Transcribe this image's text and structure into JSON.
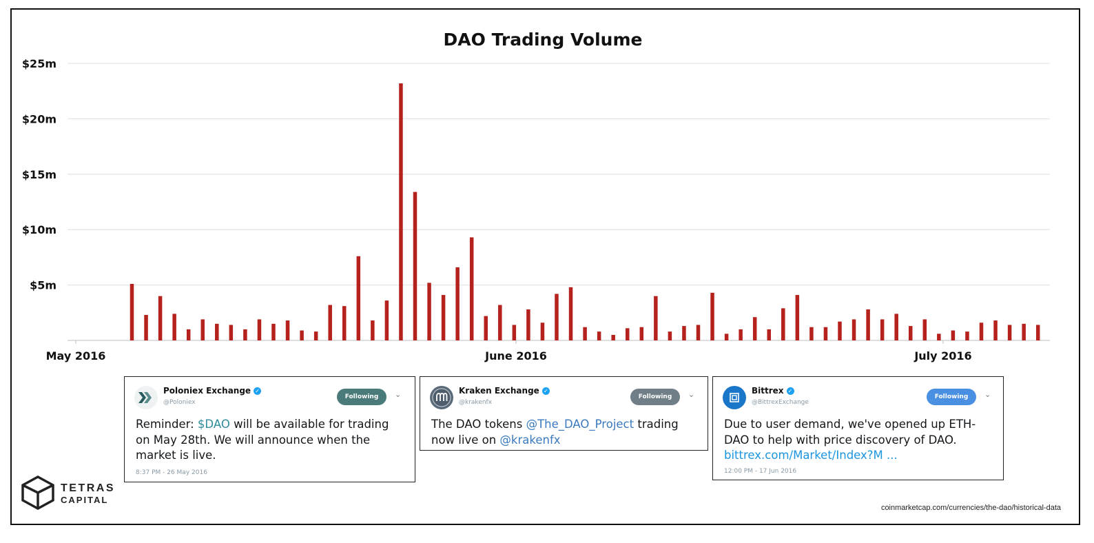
{
  "chart_data": {
    "type": "bar",
    "title": "DAO Trading Volume",
    "xlabel": "",
    "ylabel": "",
    "x_tick_labels": [
      "May 2016",
      "June 2016",
      "July 2016"
    ],
    "y_tick_labels": [
      "$5m",
      "$10m",
      "$15m",
      "$20m",
      "$25m"
    ],
    "y_ticks": [
      5,
      10,
      15,
      20,
      25
    ],
    "ylim": [
      0,
      25
    ],
    "y_unit": "million USD",
    "grid": true,
    "bar_color": "#b5221d",
    "values": [
      5.1,
      2.3,
      4.0,
      2.4,
      1.0,
      1.9,
      1.5,
      1.4,
      1.0,
      1.9,
      1.5,
      1.8,
      0.9,
      0.8,
      3.2,
      3.1,
      7.6,
      1.8,
      3.6,
      23.2,
      13.4,
      5.2,
      4.1,
      6.6,
      9.3,
      2.2,
      3.2,
      1.4,
      2.8,
      1.6,
      4.2,
      4.8,
      1.2,
      0.8,
      0.5,
      1.1,
      1.2,
      4.0,
      0.8,
      1.3,
      1.4,
      4.3,
      0.6,
      1.0,
      2.1,
      1.0,
      2.9,
      4.1,
      1.2,
      1.2,
      1.7,
      1.9,
      2.8,
      1.9,
      2.4,
      1.3,
      1.9,
      0.6,
      0.9,
      0.8,
      1.6,
      1.8,
      1.4,
      1.5,
      1.4
    ]
  },
  "tweets": [
    {
      "name": "Poloniex Exchange",
      "handle": "@Poloniex",
      "follow_label": "Following",
      "follow_color": "#4b7a7a",
      "avatar": "poloniex-logo",
      "text_l1_pre": "Reminder: ",
      "text_l1_link": "$DAO",
      "text_l1_post": " will be available for trading",
      "text_l2": "on May 28th. We will announce when the",
      "text_l3": "market is live.",
      "time": "8:37 PM - 26 May 2016"
    },
    {
      "name": "Kraken Exchange",
      "handle": "@krakenfx",
      "follow_label": "Following",
      "follow_color": "#6f7e87",
      "avatar": "kraken-logo",
      "text_l1_pre": "The DAO tokens ",
      "text_l1_link": "@The_DAO_Project",
      "text_l1_post": " trading",
      "text_l2_pre": "now live on ",
      "text_l2_link": "@krakenfx"
    },
    {
      "name": "Bittrex",
      "handle": "@BittrexExchange",
      "follow_label": "Following",
      "follow_color": "#4a90e2",
      "avatar": "bittrex-logo",
      "text_l1": "Due to user demand, we've opened up ETH-",
      "text_l2": "DAO to help with price discovery of DAO.",
      "text_l3_link": "bittrex.com/Market/Index?M ...",
      "time": "12:00 PM - 17 Jun 2016"
    }
  ],
  "brand": {
    "line1": "TETRAS",
    "line2": "CAPITAL"
  },
  "source": "coinmarketcap.com/currencies/the-dao/historical-data"
}
